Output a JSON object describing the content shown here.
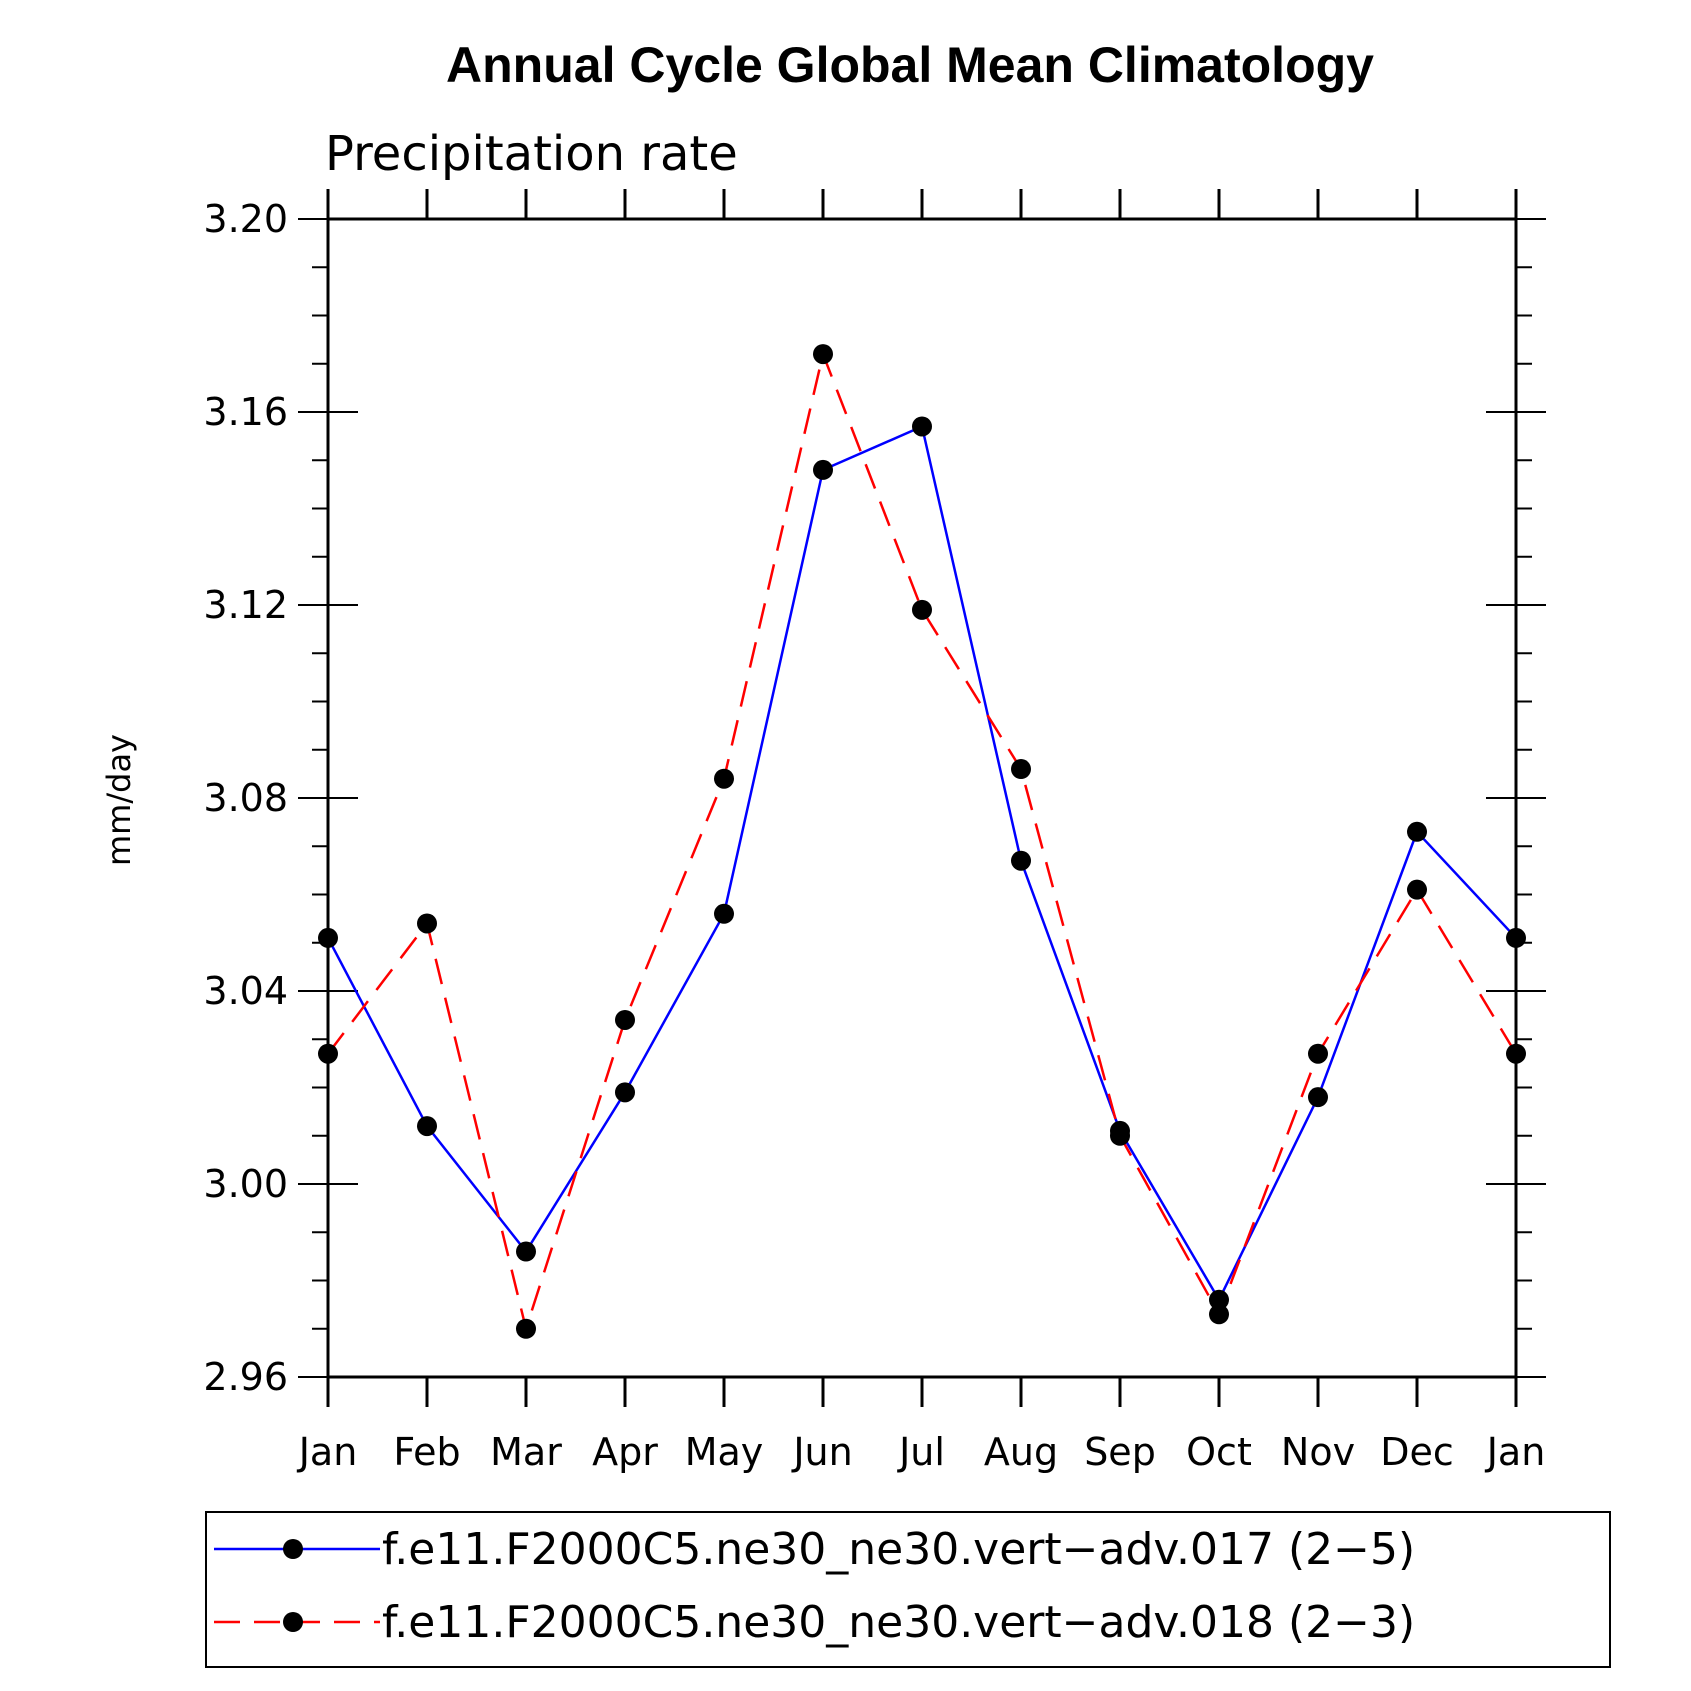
{
  "chart_data": {
    "type": "line",
    "title": "Annual Cycle Global Mean Climatology",
    "subtitle": "Precipitation rate",
    "xlabel": "",
    "ylabel": "mm/day",
    "categories": [
      "Jan",
      "Feb",
      "Mar",
      "Apr",
      "May",
      "Jun",
      "Jul",
      "Aug",
      "Sep",
      "Oct",
      "Nov",
      "Dec",
      "Jan"
    ],
    "ylim": [
      2.96,
      3.2
    ],
    "yticks": [
      "3.20",
      "3.16",
      "3.12",
      "3.08",
      "3.04",
      "3.00",
      "2.96"
    ],
    "ytick_values": [
      3.2,
      3.16,
      3.12,
      3.08,
      3.04,
      3.0,
      2.96
    ],
    "grid": false,
    "legend_position": "bottom",
    "series": [
      {
        "name": "f.e11.F2000C5.ne30_ne30.vert−adv.017 (2−5)",
        "color": "#0000ff",
        "line_style": "solid",
        "marker": "filled-circle",
        "values": [
          3.051,
          3.012,
          2.986,
          3.019,
          3.056,
          3.148,
          3.157,
          3.067,
          3.011,
          2.976,
          3.018,
          3.073,
          3.051
        ]
      },
      {
        "name": "f.e11.F2000C5.ne30_ne30.vert−adv.018 (2−3)",
        "color": "#ff0000",
        "line_style": "dashed",
        "marker": "filled-circle",
        "values": [
          3.027,
          3.054,
          2.97,
          3.034,
          3.084,
          3.172,
          3.119,
          3.086,
          3.01,
          2.973,
          3.027,
          3.061,
          3.027
        ]
      }
    ]
  }
}
